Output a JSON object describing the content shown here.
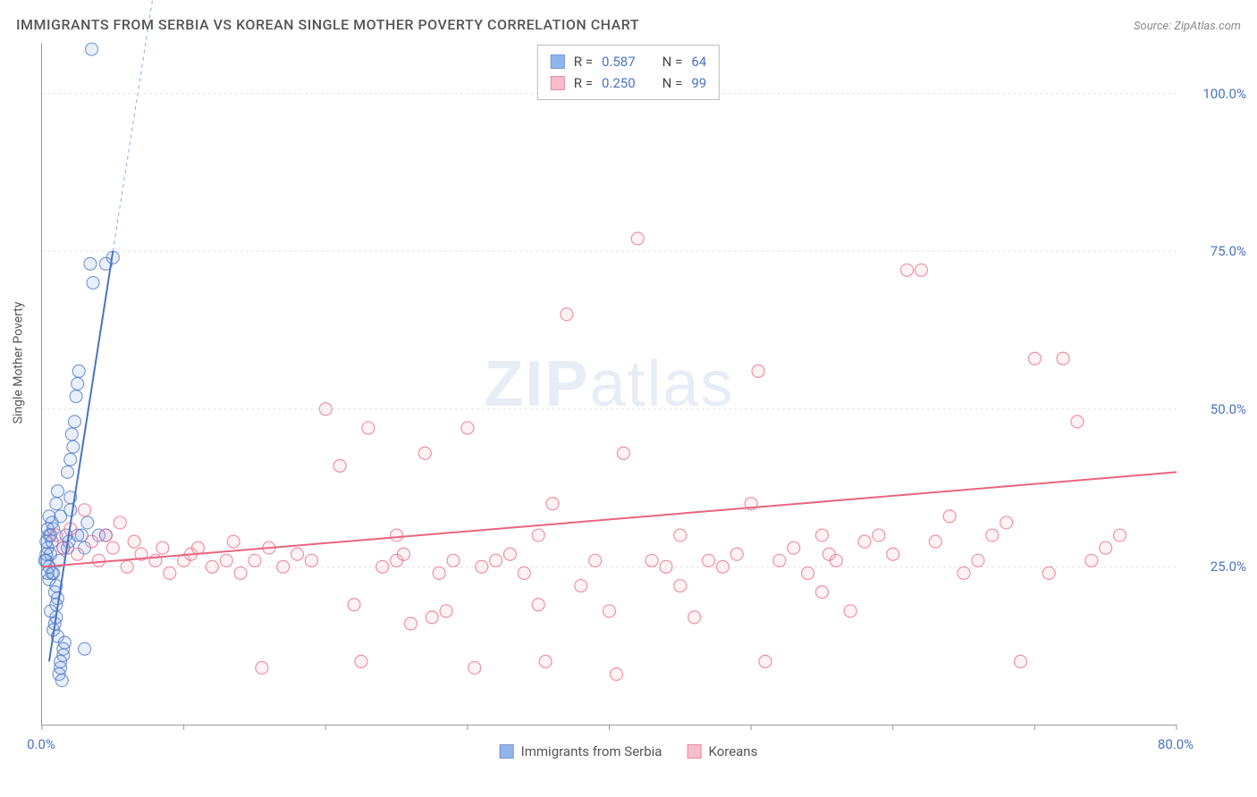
{
  "title": "IMMIGRANTS FROM SERBIA VS KOREAN SINGLE MOTHER POVERTY CORRELATION CHART",
  "source": "Source: ZipAtlas.com",
  "ylabel": "Single Mother Poverty",
  "watermark_bold": "ZIP",
  "watermark_light": "atlas",
  "chart": {
    "type": "scatter",
    "background_color": "#ffffff",
    "grid_color": "#e4e4e4",
    "axis_color": "#999999",
    "tick_color": "#999999",
    "xlim": [
      0,
      80
    ],
    "ylim": [
      0,
      108
    ],
    "y_ticks": [
      25,
      50,
      75,
      100
    ],
    "y_tick_labels": [
      "25.0%",
      "50.0%",
      "75.0%",
      "100.0%"
    ],
    "x_ticks": [
      0,
      10,
      20,
      30,
      40,
      50,
      60,
      70,
      80
    ],
    "x_tick_labels_shown": {
      "0": "0.0%",
      "80": "80.0%"
    },
    "label_color": "#4a72c4",
    "label_fontsize": 15,
    "marker_radius": 7,
    "marker_stroke_width": 1.2,
    "marker_fill_opacity": 0.15,
    "series": [
      {
        "id": "serbia",
        "name": "Immigrants from Serbia",
        "color": "#6d9be8",
        "stroke": "#4a72c4",
        "R": "0.587",
        "N": "64",
        "trend": {
          "x1": 0.5,
          "y1": 10,
          "x2": 5,
          "y2": 75,
          "dash_ext_x": 8.5,
          "dash_ext_y": 125,
          "width": 2
        },
        "points": [
          [
            0.3,
            26
          ],
          [
            0.4,
            28
          ],
          [
            0.5,
            30
          ],
          [
            0.5,
            25
          ],
          [
            0.6,
            27
          ],
          [
            0.7,
            29
          ],
          [
            0.8,
            24
          ],
          [
            0.8,
            31
          ],
          [
            0.9,
            21
          ],
          [
            1.0,
            22
          ],
          [
            1.0,
            19
          ],
          [
            1.1,
            20
          ],
          [
            1.2,
            26
          ],
          [
            1.2,
            8
          ],
          [
            1.3,
            9
          ],
          [
            1.3,
            10
          ],
          [
            1.4,
            7
          ],
          [
            1.5,
            11
          ],
          [
            1.5,
            12
          ],
          [
            1.6,
            13
          ],
          [
            1.8,
            40
          ],
          [
            2.0,
            34
          ],
          [
            2.0,
            36
          ],
          [
            2.2,
            44
          ],
          [
            2.3,
            48
          ],
          [
            2.4,
            52
          ],
          [
            2.5,
            54
          ],
          [
            2.6,
            56
          ],
          [
            2.8,
            30
          ],
          [
            3.0,
            28
          ],
          [
            3.2,
            32
          ],
          [
            3.4,
            73
          ],
          [
            3.6,
            70
          ],
          [
            1.0,
            35
          ],
          [
            1.1,
            37
          ],
          [
            1.3,
            33
          ],
          [
            3.5,
            107
          ],
          [
            4.5,
            73
          ],
          [
            5.0,
            74
          ],
          [
            0.8,
            15
          ],
          [
            0.9,
            16
          ],
          [
            1.0,
            17
          ],
          [
            1.1,
            14
          ],
          [
            0.6,
            18
          ],
          [
            2.0,
            42
          ],
          [
            2.1,
            46
          ],
          [
            0.5,
            23
          ],
          [
            0.7,
            24
          ],
          [
            0.3,
            29
          ],
          [
            0.4,
            31
          ],
          [
            0.5,
            33
          ],
          [
            1.8,
            28
          ],
          [
            1.9,
            29
          ],
          [
            0.2,
            26
          ],
          [
            0.3,
            27
          ],
          [
            0.4,
            24
          ],
          [
            0.6,
            30
          ],
          [
            0.7,
            32
          ],
          [
            2.5,
            30
          ],
          [
            3.0,
            12
          ],
          [
            4.0,
            30
          ],
          [
            4.5,
            30
          ],
          [
            1.5,
            28
          ],
          [
            1.7,
            30
          ]
        ]
      },
      {
        "id": "koreans",
        "name": "Koreans",
        "color": "#f5a8bd",
        "stroke": "#e8657f",
        "R": "0.250",
        "N": "99",
        "trend": {
          "x1": 0,
          "y1": 25,
          "x2": 80,
          "y2": 40,
          "width": 2
        },
        "points": [
          [
            1,
            30
          ],
          [
            1.5,
            28
          ],
          [
            2,
            31
          ],
          [
            2.5,
            27
          ],
          [
            3,
            34
          ],
          [
            3.5,
            29
          ],
          [
            4,
            26
          ],
          [
            4.5,
            30
          ],
          [
            5,
            28
          ],
          [
            5.5,
            32
          ],
          [
            6,
            25
          ],
          [
            6.5,
            29
          ],
          [
            7,
            27
          ],
          [
            8,
            26
          ],
          [
            8.5,
            28
          ],
          [
            9,
            24
          ],
          [
            10,
            26
          ],
          [
            10.5,
            27
          ],
          [
            11,
            28
          ],
          [
            12,
            25
          ],
          [
            13,
            26
          ],
          [
            13.5,
            29
          ],
          [
            14,
            24
          ],
          [
            15,
            26
          ],
          [
            15.5,
            9
          ],
          [
            16,
            28
          ],
          [
            17,
            25
          ],
          [
            18,
            27
          ],
          [
            19,
            26
          ],
          [
            20,
            50
          ],
          [
            21,
            41
          ],
          [
            22,
            19
          ],
          [
            22.5,
            10
          ],
          [
            23,
            47
          ],
          [
            24,
            25
          ],
          [
            25,
            26
          ],
          [
            25.5,
            27
          ],
          [
            26,
            16
          ],
          [
            27,
            43
          ],
          [
            27.5,
            17
          ],
          [
            28,
            24
          ],
          [
            28.5,
            18
          ],
          [
            29,
            26
          ],
          [
            30,
            47
          ],
          [
            30.5,
            9
          ],
          [
            31,
            25
          ],
          [
            32,
            26
          ],
          [
            33,
            27
          ],
          [
            34,
            24
          ],
          [
            35,
            19
          ],
          [
            35.5,
            10
          ],
          [
            36,
            35
          ],
          [
            37,
            65
          ],
          [
            38,
            22
          ],
          [
            39,
            26
          ],
          [
            40,
            18
          ],
          [
            40.5,
            8
          ],
          [
            41,
            43
          ],
          [
            42,
            77
          ],
          [
            43,
            26
          ],
          [
            44,
            25
          ],
          [
            45,
            22
          ],
          [
            46,
            17
          ],
          [
            47,
            26
          ],
          [
            48,
            25
          ],
          [
            49,
            27
          ],
          [
            50,
            35
          ],
          [
            50.5,
            56
          ],
          [
            51,
            10
          ],
          [
            52,
            26
          ],
          [
            53,
            28
          ],
          [
            54,
            24
          ],
          [
            55,
            21
          ],
          [
            55.5,
            27
          ],
          [
            56,
            26
          ],
          [
            57,
            18
          ],
          [
            58,
            29
          ],
          [
            59,
            30
          ],
          [
            60,
            27
          ],
          [
            61,
            72
          ],
          [
            62,
            72
          ],
          [
            63,
            29
          ],
          [
            64,
            33
          ],
          [
            65,
            24
          ],
          [
            66,
            26
          ],
          [
            67,
            30
          ],
          [
            68,
            32
          ],
          [
            69,
            10
          ],
          [
            70,
            58
          ],
          [
            71,
            24
          ],
          [
            72,
            58
          ],
          [
            73,
            48
          ],
          [
            74,
            26
          ],
          [
            75,
            28
          ],
          [
            76,
            30
          ],
          [
            55,
            30
          ],
          [
            45,
            30
          ],
          [
            35,
            30
          ],
          [
            25,
            30
          ]
        ]
      }
    ]
  },
  "stats_legend": {
    "R_label": "R =",
    "N_label": "N =",
    "label_color": "#444444",
    "value_color": "#4a72c4"
  },
  "bottom_legend": {
    "text_color": "#555555"
  }
}
